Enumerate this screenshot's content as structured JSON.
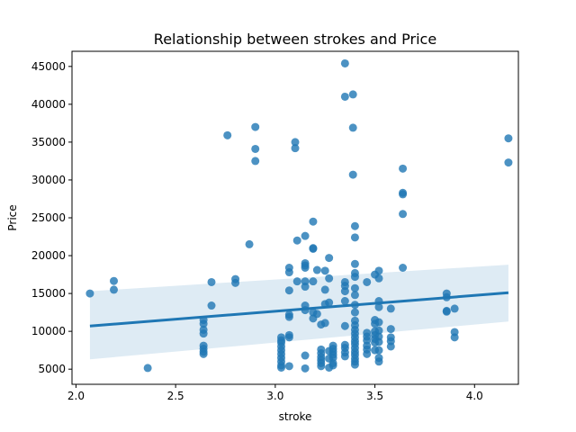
{
  "chart_data": {
    "type": "scatter",
    "title": "Relationship between strokes and Price",
    "xlabel": "stroke",
    "ylabel": "Price",
    "xlim": [
      1.98,
      4.22
    ],
    "ylim": [
      3000,
      47000
    ],
    "xticks": [
      2.0,
      2.5,
      3.0,
      3.5,
      4.0
    ],
    "xtick_labels": [
      "2.0",
      "2.5",
      "3.0",
      "3.5",
      "4.0"
    ],
    "yticks": [
      5000,
      10000,
      15000,
      20000,
      25000,
      30000,
      35000,
      40000,
      45000
    ],
    "ytick_labels": [
      "5000",
      "10000",
      "15000",
      "20000",
      "25000",
      "30000",
      "35000",
      "40000",
      "45000"
    ],
    "grid": false,
    "colors": {
      "points": "#1f77b4",
      "line": "#1f77b4",
      "band": "#1f77b4"
    },
    "series": [
      {
        "points": [
          [
            2.07,
            15000
          ],
          [
            2.19,
            16650
          ],
          [
            2.19,
            15500
          ],
          [
            2.36,
            5150
          ],
          [
            2.64,
            11500
          ],
          [
            2.64,
            11000
          ],
          [
            2.64,
            10200
          ],
          [
            2.64,
            9700
          ],
          [
            2.64,
            8100
          ],
          [
            2.64,
            7700
          ],
          [
            2.64,
            7300
          ],
          [
            2.64,
            7000
          ],
          [
            2.68,
            16500
          ],
          [
            2.68,
            13400
          ],
          [
            2.76,
            35900
          ],
          [
            2.8,
            16900
          ],
          [
            2.8,
            16400
          ],
          [
            2.87,
            21500
          ],
          [
            2.9,
            37000
          ],
          [
            2.9,
            34100
          ],
          [
            2.9,
            32500
          ],
          [
            3.03,
            9200
          ],
          [
            3.03,
            8800
          ],
          [
            3.03,
            8500
          ],
          [
            3.03,
            8000
          ],
          [
            3.03,
            7500
          ],
          [
            3.03,
            7000
          ],
          [
            3.03,
            6500
          ],
          [
            3.03,
            6000
          ],
          [
            3.03,
            5500
          ],
          [
            3.03,
            5200
          ],
          [
            3.07,
            18400
          ],
          [
            3.07,
            17800
          ],
          [
            3.07,
            15400
          ],
          [
            3.07,
            12200
          ],
          [
            3.07,
            11900
          ],
          [
            3.07,
            9500
          ],
          [
            3.07,
            9200
          ],
          [
            3.07,
            5400
          ],
          [
            3.1,
            35000
          ],
          [
            3.1,
            34200
          ],
          [
            3.11,
            22000
          ],
          [
            3.11,
            16600
          ],
          [
            3.15,
            22600
          ],
          [
            3.15,
            19000
          ],
          [
            3.15,
            18700
          ],
          [
            3.15,
            18400
          ],
          [
            3.15,
            16600
          ],
          [
            3.15,
            15900
          ],
          [
            3.15,
            13400
          ],
          [
            3.15,
            12800
          ],
          [
            3.15,
            5100
          ],
          [
            3.15,
            6800
          ],
          [
            3.19,
            24500
          ],
          [
            3.19,
            21000
          ],
          [
            3.19,
            20900
          ],
          [
            3.19,
            16600
          ],
          [
            3.19,
            12500
          ],
          [
            3.19,
            11700
          ],
          [
            3.21,
            18100
          ],
          [
            3.21,
            12300
          ],
          [
            3.23,
            10900
          ],
          [
            3.23,
            7600
          ],
          [
            3.23,
            7100
          ],
          [
            3.23,
            6600
          ],
          [
            3.23,
            6200
          ],
          [
            3.23,
            5800
          ],
          [
            3.23,
            5400
          ],
          [
            3.25,
            18000
          ],
          [
            3.25,
            15500
          ],
          [
            3.25,
            13600
          ],
          [
            3.25,
            11100
          ],
          [
            3.27,
            19700
          ],
          [
            3.27,
            17000
          ],
          [
            3.27,
            13800
          ],
          [
            3.27,
            7400
          ],
          [
            3.27,
            6400
          ],
          [
            3.27,
            5200
          ],
          [
            3.29,
            8100
          ],
          [
            3.29,
            7700
          ],
          [
            3.29,
            7300
          ],
          [
            3.29,
            6900
          ],
          [
            3.29,
            6500
          ],
          [
            3.29,
            5800
          ],
          [
            3.29,
            5500
          ],
          [
            3.35,
            45400
          ],
          [
            3.35,
            41000
          ],
          [
            3.35,
            16500
          ],
          [
            3.35,
            16000
          ],
          [
            3.35,
            15300
          ],
          [
            3.35,
            14000
          ],
          [
            3.35,
            10700
          ],
          [
            3.35,
            8200
          ],
          [
            3.35,
            7800
          ],
          [
            3.35,
            7200
          ],
          [
            3.35,
            6700
          ],
          [
            3.39,
            41300
          ],
          [
            3.39,
            36900
          ],
          [
            3.39,
            30700
          ],
          [
            3.4,
            23900
          ],
          [
            3.4,
            22400
          ],
          [
            3.4,
            18900
          ],
          [
            3.4,
            17700
          ],
          [
            3.4,
            17200
          ],
          [
            3.4,
            15700
          ],
          [
            3.4,
            14800
          ],
          [
            3.4,
            13500
          ],
          [
            3.4,
            12500
          ],
          [
            3.4,
            11400
          ],
          [
            3.4,
            10800
          ],
          [
            3.4,
            10200
          ],
          [
            3.4,
            9700
          ],
          [
            3.4,
            9200
          ],
          [
            3.4,
            8700
          ],
          [
            3.4,
            8300
          ],
          [
            3.4,
            7800
          ],
          [
            3.4,
            7300
          ],
          [
            3.4,
            6900
          ],
          [
            3.4,
            6400
          ],
          [
            3.4,
            6000
          ],
          [
            3.4,
            5600
          ],
          [
            3.46,
            16500
          ],
          [
            3.46,
            9800
          ],
          [
            3.46,
            9300
          ],
          [
            3.46,
            8800
          ],
          [
            3.46,
            8100
          ],
          [
            3.46,
            7600
          ],
          [
            3.46,
            7000
          ],
          [
            3.5,
            17500
          ],
          [
            3.5,
            11500
          ],
          [
            3.5,
            11000
          ],
          [
            3.5,
            10000
          ],
          [
            3.5,
            9500
          ],
          [
            3.5,
            9000
          ],
          [
            3.5,
            8500
          ],
          [
            3.5,
            7500
          ],
          [
            3.52,
            18000
          ],
          [
            3.52,
            17000
          ],
          [
            3.52,
            14000
          ],
          [
            3.52,
            13200
          ],
          [
            3.52,
            11200
          ],
          [
            3.52,
            10100
          ],
          [
            3.52,
            9300
          ],
          [
            3.52,
            8600
          ],
          [
            3.52,
            7500
          ],
          [
            3.52,
            6500
          ],
          [
            3.52,
            6000
          ],
          [
            3.58,
            13000
          ],
          [
            3.58,
            10300
          ],
          [
            3.58,
            9200
          ],
          [
            3.58,
            8700
          ],
          [
            3.58,
            8000
          ],
          [
            3.64,
            31500
          ],
          [
            3.64,
            28300
          ],
          [
            3.64,
            28100
          ],
          [
            3.64,
            25500
          ],
          [
            3.64,
            18400
          ],
          [
            3.86,
            15000
          ],
          [
            3.86,
            14500
          ],
          [
            3.86,
            12700
          ],
          [
            3.86,
            12600
          ],
          [
            3.9,
            13000
          ],
          [
            3.9,
            9900
          ],
          [
            3.9,
            9200
          ],
          [
            4.17,
            35500
          ],
          [
            4.17,
            32300
          ]
        ]
      }
    ],
    "regression": {
      "x": [
        2.07,
        4.17
      ],
      "y": [
        10700,
        15100
      ],
      "ci_lower": [
        6300,
        11300
      ],
      "ci_upper": [
        15300,
        18800
      ]
    }
  }
}
